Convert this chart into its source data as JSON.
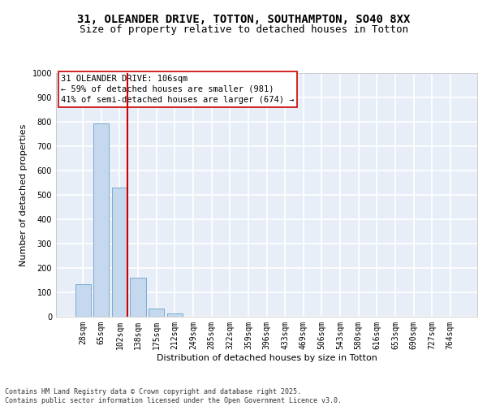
{
  "title_line1": "31, OLEANDER DRIVE, TOTTON, SOUTHAMPTON, SO40 8XX",
  "title_line2": "Size of property relative to detached houses in Totton",
  "xlabel": "Distribution of detached houses by size in Totton",
  "ylabel": "Number of detached properties",
  "bar_categories": [
    "28sqm",
    "65sqm",
    "102sqm",
    "138sqm",
    "175sqm",
    "212sqm",
    "249sqm",
    "285sqm",
    "322sqm",
    "359sqm",
    "396sqm",
    "433sqm",
    "469sqm",
    "506sqm",
    "543sqm",
    "580sqm",
    "616sqm",
    "653sqm",
    "690sqm",
    "727sqm",
    "764sqm"
  ],
  "bar_values": [
    135,
    795,
    530,
    160,
    35,
    12,
    0,
    0,
    0,
    0,
    0,
    0,
    0,
    0,
    0,
    0,
    0,
    0,
    0,
    0,
    0
  ],
  "bar_color": "#c5d8ee",
  "bar_edge_color": "#7aaad0",
  "ylim": [
    0,
    1000
  ],
  "yticks": [
    0,
    100,
    200,
    300,
    400,
    500,
    600,
    700,
    800,
    900,
    1000
  ],
  "vline_x_index": 2,
  "vline_color": "#cc0000",
  "annotation_box_text": "31 OLEANDER DRIVE: 106sqm\n← 59% of detached houses are smaller (981)\n41% of semi-detached houses are larger (674) →",
  "background_color": "#e8eef8",
  "grid_color": "#ffffff",
  "footer_text": "Contains HM Land Registry data © Crown copyright and database right 2025.\nContains public sector information licensed under the Open Government Licence v3.0.",
  "title_fontsize": 10,
  "subtitle_fontsize": 9,
  "axis_label_fontsize": 8,
  "tick_fontsize": 7,
  "annotation_fontsize": 7.5
}
